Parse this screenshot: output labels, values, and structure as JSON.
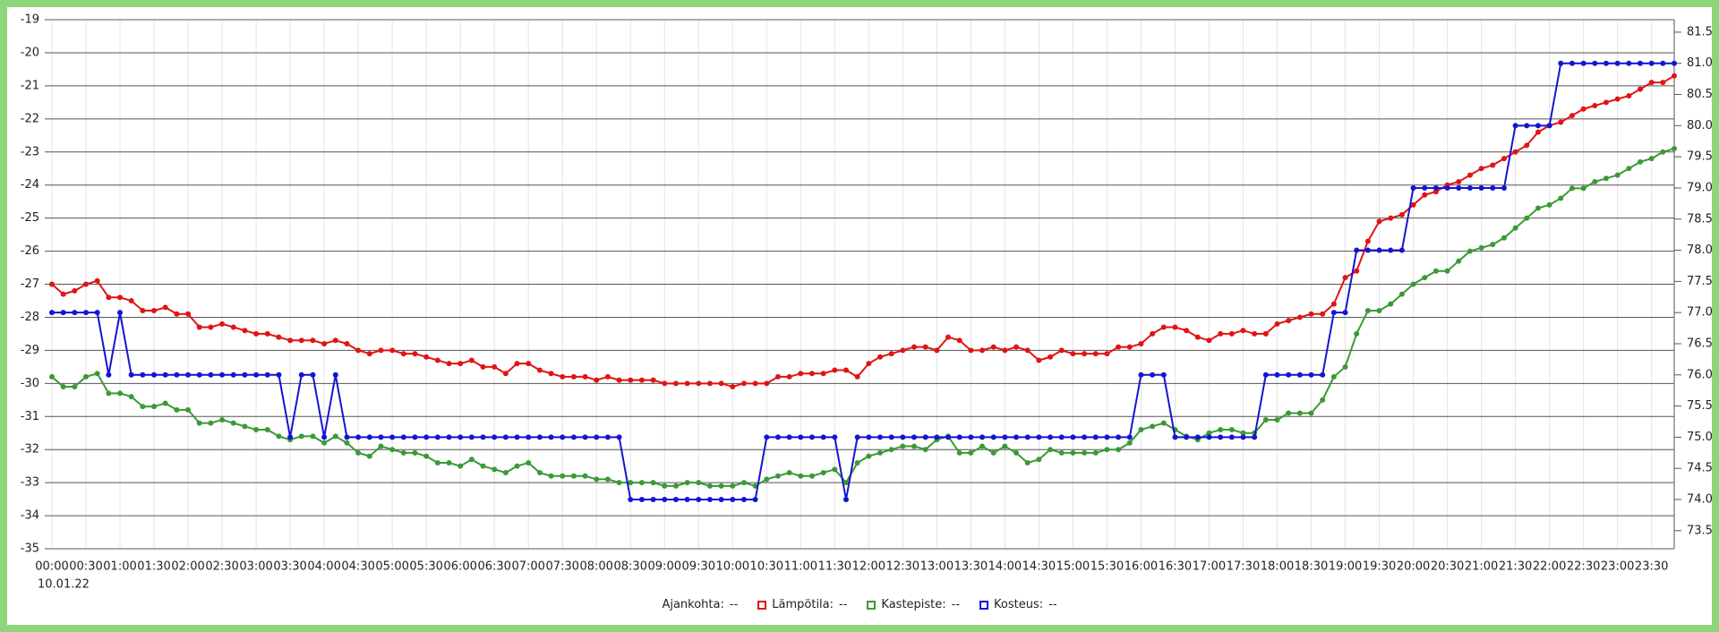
{
  "chart_data": {
    "type": "line",
    "date_label": "10.01.22",
    "legend": {
      "label": "Ajankohta:",
      "value": "--"
    },
    "categories": [
      "00:00",
      null,
      null,
      "00:30",
      null,
      null,
      "01:00",
      null,
      null,
      "01:30",
      null,
      null,
      "02:00",
      null,
      null,
      "02:30",
      null,
      null,
      "03:00",
      null,
      null,
      "03:30",
      null,
      null,
      "04:00",
      null,
      null,
      "04:30",
      null,
      null,
      "05:00",
      null,
      null,
      "05:30",
      null,
      null,
      "06:00",
      null,
      null,
      "06:30",
      null,
      null,
      "07:00",
      null,
      null,
      "07:30",
      null,
      null,
      "08:00",
      null,
      null,
      "08:30",
      null,
      null,
      "09:00",
      null,
      null,
      "09:30",
      null,
      null,
      "10:00",
      null,
      null,
      "10:30",
      null,
      null,
      "11:00",
      null,
      null,
      "11:30",
      null,
      null,
      "12:00",
      null,
      null,
      "12:30",
      null,
      null,
      "13:00",
      null,
      null,
      "13:30",
      null,
      null,
      "14:00",
      null,
      null,
      "14:30",
      null,
      null,
      "15:00",
      null,
      null,
      "15:30",
      null,
      null,
      "16:00",
      null,
      null,
      "16:30",
      null,
      null,
      "17:00",
      null,
      null,
      "17:30",
      null,
      null,
      "18:00",
      null,
      null,
      "18:30",
      null,
      null,
      "19:00",
      null,
      null,
      "19:30",
      null,
      null,
      "20:00",
      null,
      null,
      "20:30",
      null,
      null,
      "21:00",
      null,
      null,
      "21:30",
      null,
      null,
      "22:00",
      null,
      null,
      "22:30",
      null,
      null,
      "23:00",
      null,
      null,
      "23:30",
      null,
      null
    ],
    "ylim": [
      -35,
      -19
    ],
    "yticks": [
      -19,
      -20,
      -21,
      -22,
      -23,
      -24,
      -25,
      -26,
      -27,
      -28,
      -29,
      -30,
      -31,
      -32,
      -33,
      -34,
      -35
    ],
    "y2lim": [
      73.21,
      81.7
    ],
    "y2ticks": [
      73.5,
      {
        "value": 74,
        "label": "74.0"
      },
      74.5,
      {
        "value": 75,
        "label": "75.0"
      },
      75.5,
      {
        "value": 76,
        "label": "76.0"
      },
      76.5,
      {
        "value": 77,
        "label": "77.0"
      },
      77.5,
      {
        "value": 78,
        "label": "78.0"
      },
      78.5,
      {
        "value": 79,
        "label": "79.0"
      },
      79.5,
      {
        "value": 80,
        "label": "80.0"
      },
      80.5,
      {
        "value": 81,
        "label": "81.0"
      },
      81.5
    ],
    "grid": true,
    "series": [
      {
        "name": "Lämpötila:",
        "legend_value": "--",
        "color": "#e01414",
        "values": [
          -27.0,
          -27.3,
          -27.2,
          -27.0,
          -26.9,
          -27.4,
          -27.4,
          -27.5,
          -27.8,
          -27.8,
          -27.7,
          -27.9,
          -27.9,
          -28.3,
          -28.3,
          -28.2,
          -28.3,
          -28.4,
          -28.5,
          -28.5,
          -28.6,
          -28.7,
          -28.7,
          -28.7,
          -28.8,
          -28.7,
          -28.8,
          -29.0,
          -29.1,
          -29.0,
          -29.0,
          -29.1,
          -29.1,
          -29.2,
          -29.3,
          -29.4,
          -29.4,
          -29.3,
          -29.5,
          -29.5,
          -29.7,
          -29.4,
          -29.4,
          -29.6,
          -29.7,
          -29.8,
          -29.8,
          -29.8,
          -29.9,
          -29.8,
          -29.9,
          -29.9,
          -29.9,
          -29.9,
          -30.0,
          -30.0,
          -30.0,
          -30.0,
          -30.0,
          -30.0,
          -30.1,
          -30.0,
          -30.0,
          -30.0,
          -29.8,
          -29.8,
          -29.7,
          -29.7,
          -29.7,
          -29.6,
          -29.6,
          -29.8,
          -29.4,
          -29.2,
          -29.1,
          -29.0,
          -28.9,
          -28.9,
          -29.0,
          -28.6,
          -28.7,
          -29.0,
          -29.0,
          -28.9,
          -29.0,
          -28.9,
          -29.0,
          -29.3,
          -29.2,
          -29.0,
          -29.1,
          -29.1,
          -29.1,
          -29.1,
          -28.9,
          -28.9,
          -28.8,
          -28.5,
          -28.3,
          -28.3,
          -28.4,
          -28.6,
          -28.7,
          -28.5,
          -28.5,
          -28.4,
          -28.5,
          -28.5,
          -28.2,
          -28.1,
          -28.0,
          -27.9,
          -27.9,
          -27.6,
          -26.8,
          -26.6,
          -25.7,
          -25.1,
          -25.0,
          -24.9,
          -24.6,
          -24.3,
          -24.2,
          -24.0,
          -23.9,
          -23.7,
          -23.5,
          -23.4,
          -23.2,
          -23.0,
          -22.8,
          -22.4,
          -22.2,
          -22.1,
          -21.9,
          -21.7,
          -21.6,
          -21.5,
          -21.4,
          -21.3,
          -21.1,
          -20.9,
          -20.9,
          -20.7
        ]
      },
      {
        "name": "Kastepiste:",
        "legend_value": "--",
        "color": "#3a9a36",
        "values": [
          -29.8,
          -30.1,
          -30.1,
          -29.8,
          -29.7,
          -30.3,
          -30.3,
          -30.4,
          -30.7,
          -30.7,
          -30.6,
          -30.8,
          -30.8,
          -31.2,
          -31.2,
          -31.1,
          -31.2,
          -31.3,
          -31.4,
          -31.4,
          -31.6,
          -31.7,
          -31.6,
          -31.6,
          -31.8,
          -31.6,
          -31.8,
          -32.1,
          -32.2,
          -31.9,
          -32.0,
          -32.1,
          -32.1,
          -32.2,
          -32.4,
          -32.4,
          -32.5,
          -32.3,
          -32.5,
          -32.6,
          -32.7,
          -32.5,
          -32.4,
          -32.7,
          -32.8,
          -32.8,
          -32.8,
          -32.8,
          -32.9,
          -32.9,
          -33.0,
          -33.0,
          -33.0,
          -33.0,
          -33.1,
          -33.1,
          -33.0,
          -33.0,
          -33.1,
          -33.1,
          -33.1,
          -33.0,
          -33.1,
          -32.9,
          -32.8,
          -32.7,
          -32.8,
          -32.8,
          -32.7,
          -32.6,
          -33.0,
          -32.4,
          -32.2,
          -32.1,
          -32.0,
          -31.9,
          -31.9,
          -32.0,
          -31.7,
          -31.6,
          -32.1,
          -32.1,
          -31.9,
          -32.1,
          -31.9,
          -32.1,
          -32.4,
          -32.3,
          -32.0,
          -32.1,
          -32.1,
          -32.1,
          -32.1,
          -32.0,
          -32.0,
          -31.8,
          -31.4,
          -31.3,
          -31.2,
          -31.4,
          -31.6,
          -31.7,
          -31.5,
          -31.4,
          -31.4,
          -31.5,
          -31.5,
          -31.1,
          -31.1,
          -30.9,
          -30.9,
          -30.9,
          -30.5,
          -29.8,
          -29.5,
          -28.5,
          -27.8,
          -27.8,
          -27.6,
          -27.3,
          -27.0,
          -26.8,
          -26.6,
          -26.6,
          -26.3,
          -26.0,
          -25.9,
          -25.8,
          -25.6,
          -25.3,
          -25.0,
          -24.7,
          -24.6,
          -24.4,
          -24.1,
          -24.1,
          -23.9,
          -23.8,
          -23.7,
          -23.5,
          -23.3,
          -23.2,
          -23.0,
          -22.9
        ]
      },
      {
        "name": "Kosteus:",
        "legend_value": "--",
        "color": "#1414d2",
        "axis": "y2",
        "values": [
          77,
          77,
          77,
          77,
          77,
          76,
          77,
          76,
          76,
          76,
          76,
          76,
          76,
          76,
          76,
          76,
          76,
          76,
          76,
          76,
          76,
          75,
          76,
          76,
          75,
          76,
          75,
          75,
          75,
          75,
          75,
          75,
          75,
          75,
          75,
          75,
          75,
          75,
          75,
          75,
          75,
          75,
          75,
          75,
          75,
          75,
          75,
          75,
          75,
          75,
          75,
          74,
          74,
          74,
          74,
          74,
          74,
          74,
          74,
          74,
          74,
          74,
          74,
          75,
          75,
          75,
          75,
          75,
          75,
          75,
          74,
          75,
          75,
          75,
          75,
          75,
          75,
          75,
          75,
          75,
          75,
          75,
          75,
          75,
          75,
          75,
          75,
          75,
          75,
          75,
          75,
          75,
          75,
          75,
          75,
          75,
          76,
          76,
          76,
          75,
          75,
          75,
          75,
          75,
          75,
          75,
          75,
          76,
          76,
          76,
          76,
          76,
          76,
          77,
          77,
          78,
          78,
          78,
          78,
          78,
          79,
          79,
          79,
          79,
          79,
          79,
          79,
          79,
          79,
          80,
          80,
          80,
          80,
          81,
          81,
          81,
          81,
          81,
          81,
          81,
          81,
          81,
          81,
          81
        ]
      }
    ]
  }
}
